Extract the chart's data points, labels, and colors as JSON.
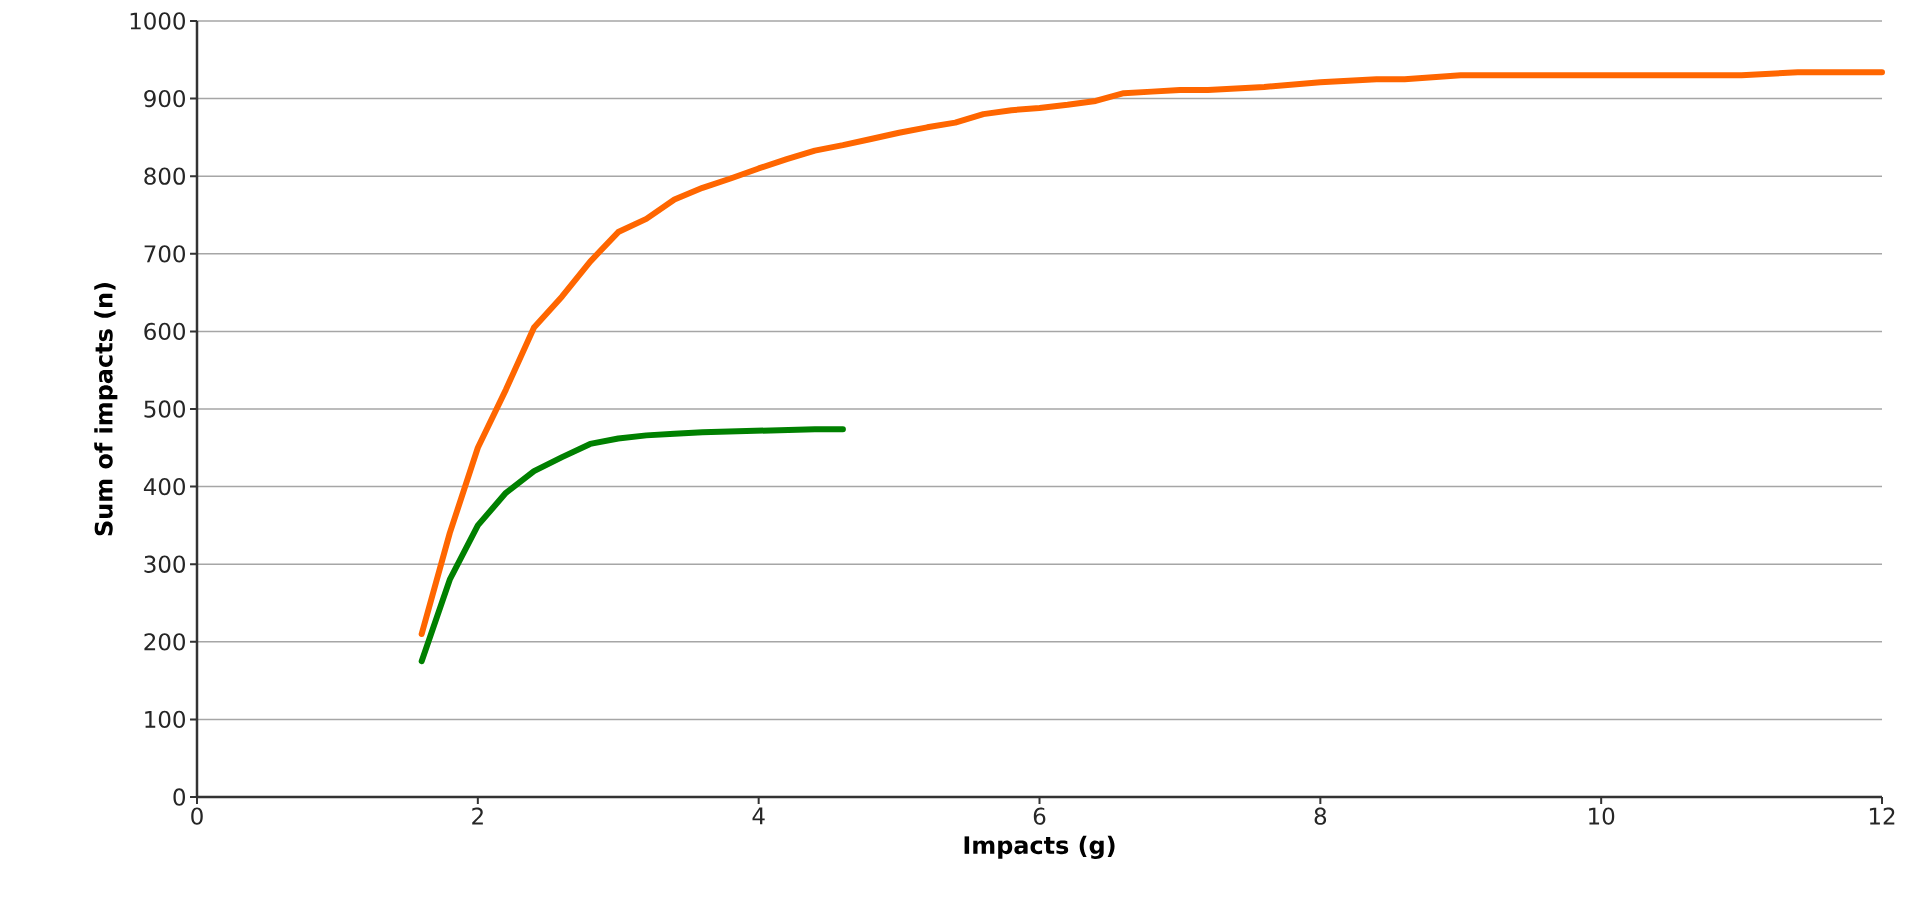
{
  "chart_data": {
    "type": "line",
    "xlabel": "Impacts (g)",
    "ylabel": "Sum of impacts (n)",
    "xlim": [
      0,
      12
    ],
    "xticks": [
      0,
      2,
      4,
      6,
      8,
      10,
      12
    ],
    "ylim": [
      0,
      1000
    ],
    "yticks": [
      0,
      100,
      200,
      300,
      400,
      500,
      600,
      700,
      800,
      900,
      1000
    ],
    "grid": "y",
    "marker": "none",
    "line_style": "solid",
    "series": [
      {
        "color": "#ff6600",
        "x": [
          1.6,
          1.8,
          2,
          2.2,
          2.4,
          2.6,
          2.8,
          3,
          3.2,
          3.4,
          3.6,
          3.8,
          4,
          4.2,
          4.4,
          4.6,
          4.8,
          5,
          5.2,
          5.4,
          5.6,
          5.8,
          6,
          6.2,
          6.4,
          6.6,
          6.8,
          7,
          7.2,
          7.6,
          8,
          8.4,
          8.6,
          9,
          10,
          11,
          11.4,
          12
        ],
        "values": [
          210,
          340,
          450,
          525,
          605,
          645,
          690,
          728,
          745,
          770,
          785,
          797,
          810,
          822,
          833,
          840,
          848,
          856,
          863,
          869,
          880,
          885,
          888,
          892,
          897,
          907,
          909,
          911,
          911,
          915,
          921,
          925,
          925,
          930,
          930,
          930,
          934,
          934
        ]
      },
      {
        "color": "#008000",
        "x": [
          1.6,
          1.8,
          2,
          2.2,
          2.4,
          2.6,
          2.8,
          3,
          3.2,
          3.4,
          3.6,
          4,
          4.4,
          4.6
        ],
        "values": [
          175,
          280,
          350,
          392,
          420,
          438,
          455,
          462,
          466,
          468,
          470,
          472,
          474,
          474
        ]
      }
    ]
  }
}
